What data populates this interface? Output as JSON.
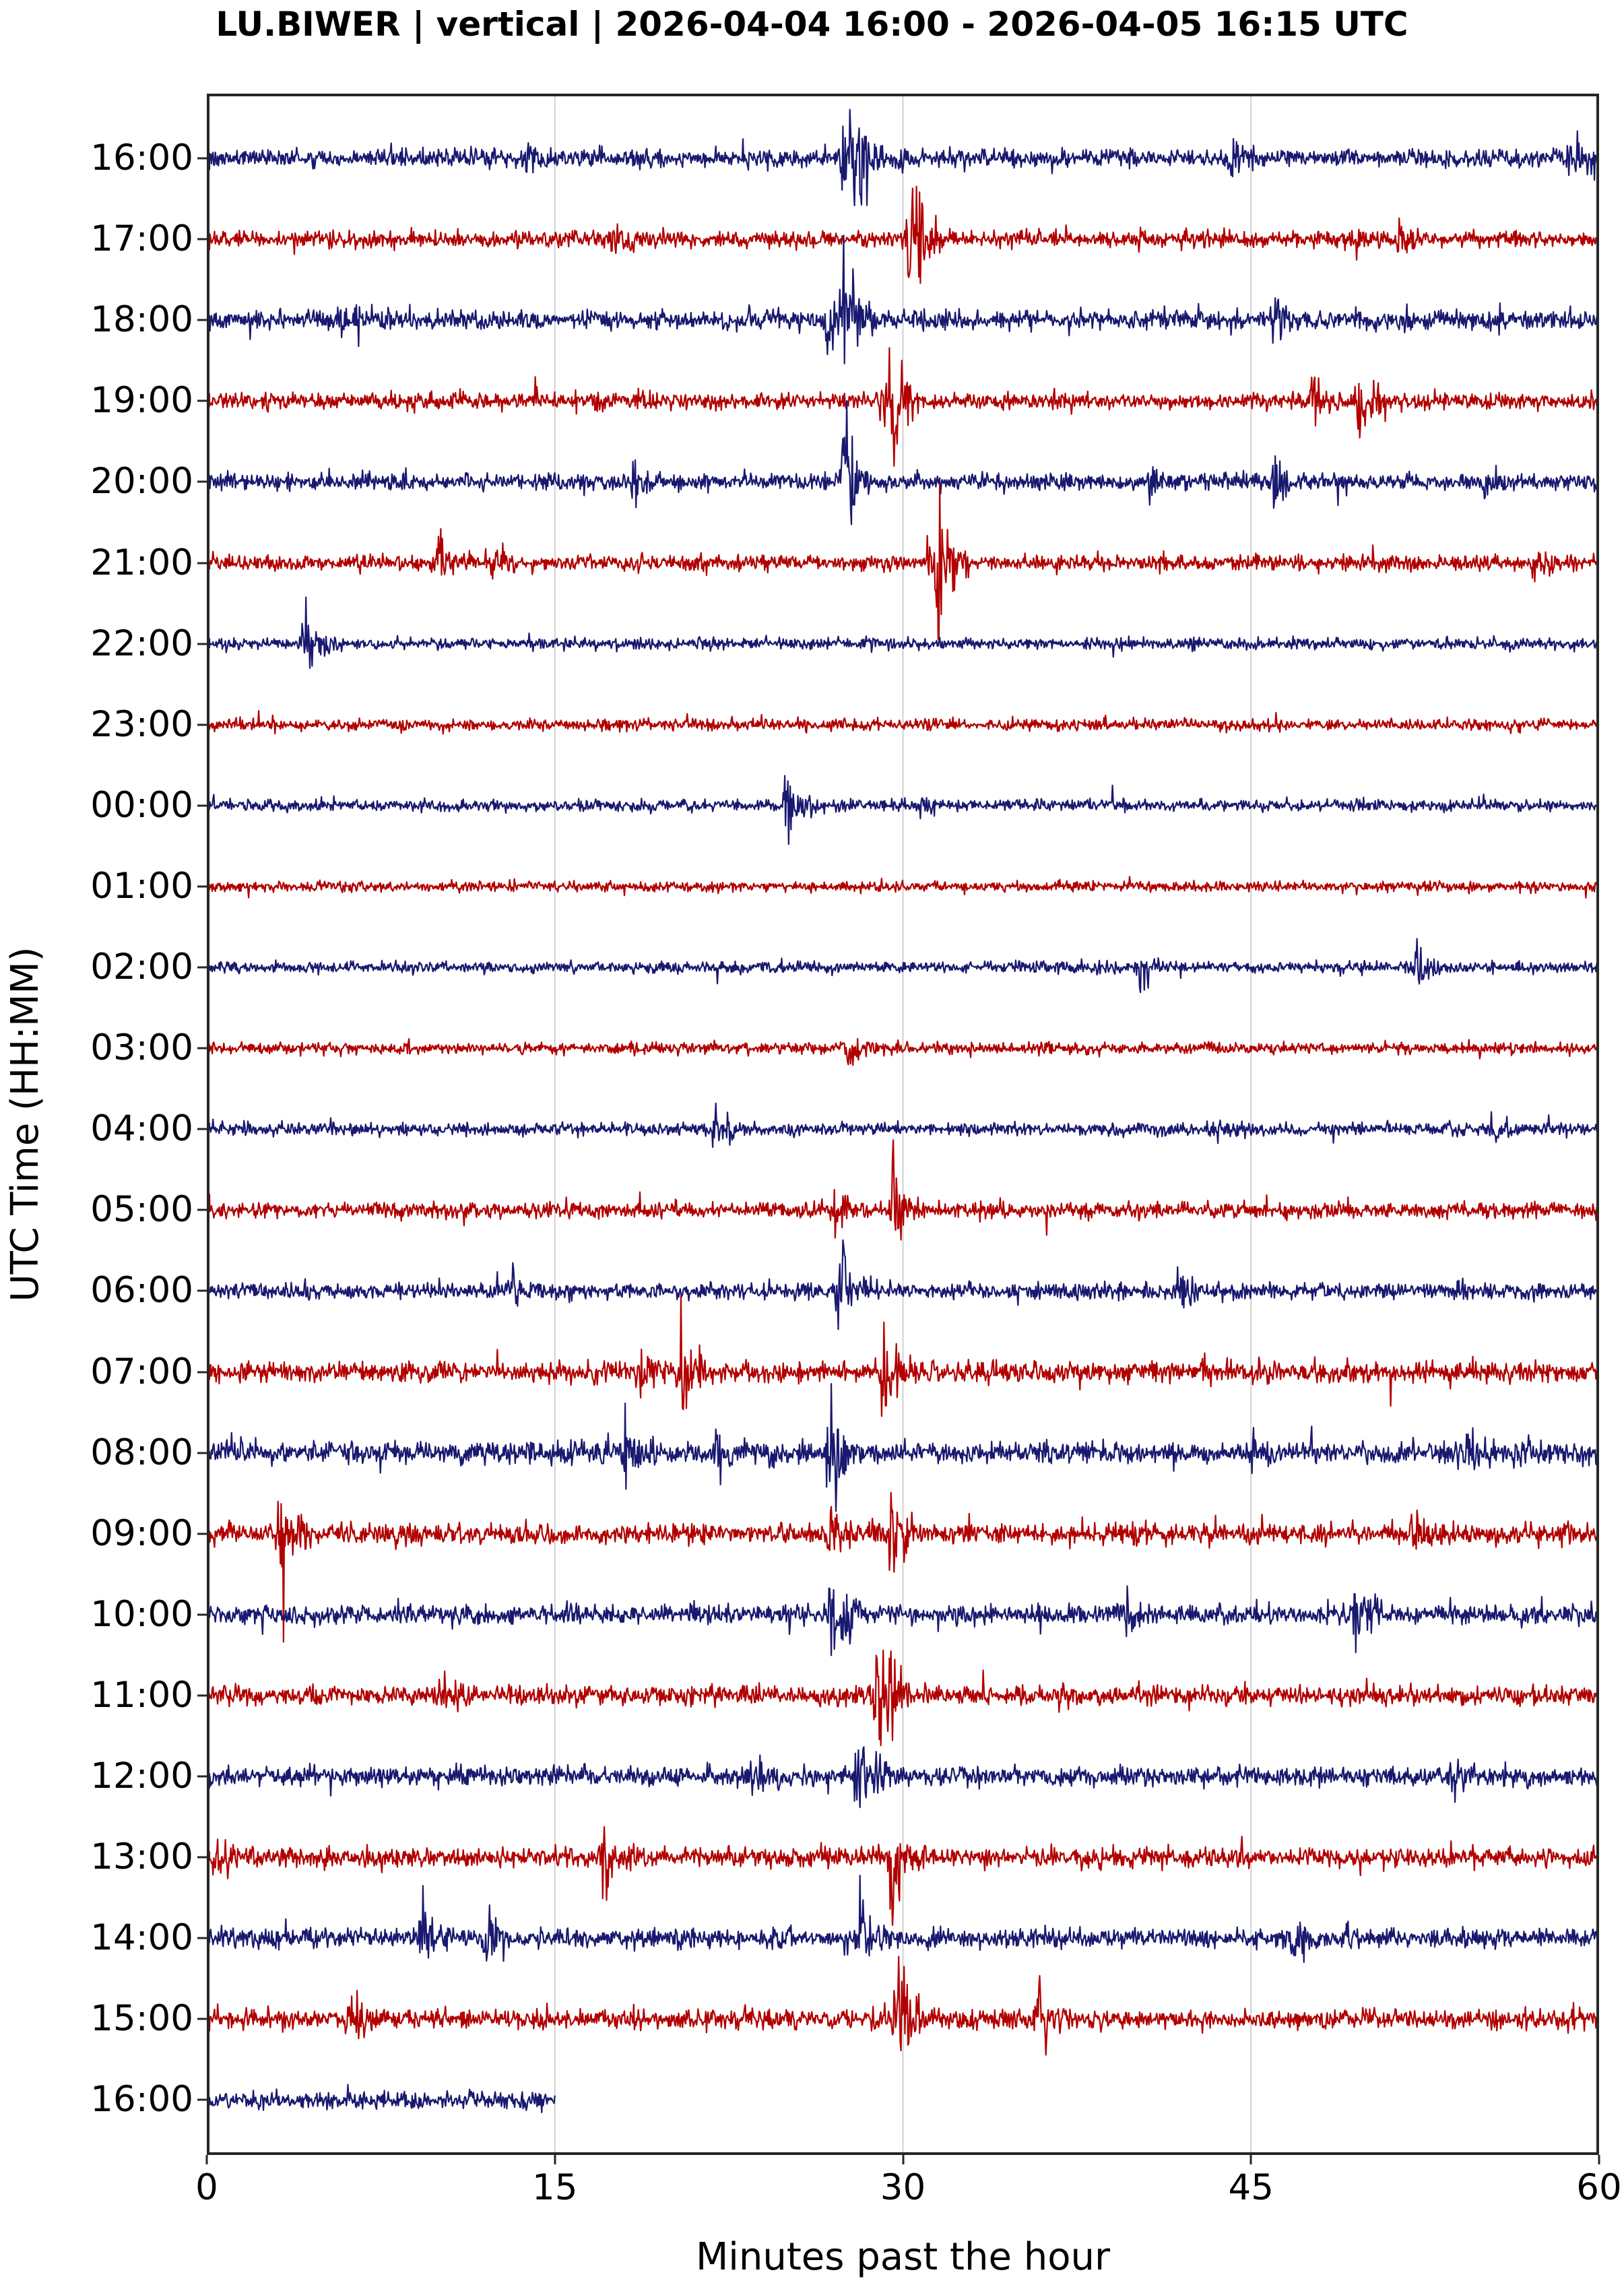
{
  "chart_data": {
    "type": "line",
    "title": "LU.BIWER | vertical | 2026-04-04 16:00 - 2026-04-05 16:15 UTC",
    "xlabel": "Minutes past the hour",
    "ylabel": "UTC Time (HH:MM)",
    "xlim": [
      0,
      60
    ],
    "x_ticks": [
      0,
      15,
      30,
      45,
      60
    ],
    "x_tick_labels": [
      "0",
      "15",
      "30",
      "45",
      "60"
    ],
    "grid": {
      "x": true,
      "y": false,
      "style": "vertical lines at 15-minute ticks"
    },
    "legend": null,
    "colors": [
      "#191970",
      "#b20000"
    ],
    "rows": [
      {
        "label": "16:00",
        "color": "#191970",
        "noise": 14,
        "events": [
          [
            27.5,
            95
          ],
          [
            28.1,
            60
          ],
          [
            13.8,
            25
          ],
          [
            44.2,
            40
          ],
          [
            58.8,
            40
          ]
        ]
      },
      {
        "label": "17:00",
        "color": "#b20000",
        "noise": 13,
        "events": [
          [
            30.2,
            85
          ],
          [
            30.6,
            55
          ],
          [
            17.6,
            25
          ],
          [
            51.5,
            22
          ]
        ]
      },
      {
        "label": "18:00",
        "color": "#191970",
        "noise": 15,
        "events": [
          [
            26.9,
            95
          ],
          [
            27.6,
            80
          ],
          [
            46.0,
            30
          ],
          [
            6.0,
            22
          ]
        ]
      },
      {
        "label": "19:00",
        "color": "#b20000",
        "noise": 13,
        "events": [
          [
            29.6,
            75
          ],
          [
            29.2,
            50
          ],
          [
            49.7,
            65
          ],
          [
            47.7,
            25
          ]
        ]
      },
      {
        "label": "20:00",
        "color": "#191970",
        "noise": 13,
        "events": [
          [
            27.5,
            100
          ],
          [
            46.0,
            45
          ],
          [
            18.5,
            35
          ],
          [
            40.5,
            22
          ],
          [
            55.2,
            30
          ]
        ]
      },
      {
        "label": "21:00",
        "color": "#b20000",
        "noise": 12,
        "events": [
          [
            31.6,
            110
          ],
          [
            31.3,
            60
          ],
          [
            10.0,
            35
          ],
          [
            12.3,
            30
          ],
          [
            57.3,
            22
          ]
        ]
      },
      {
        "label": "22:00",
        "color": "#191970",
        "noise": 9,
        "events": [
          [
            4.3,
            65
          ]
        ]
      },
      {
        "label": "23:00",
        "color": "#b20000",
        "noise": 9,
        "events": []
      },
      {
        "label": "00:00",
        "color": "#191970",
        "noise": 9,
        "events": [
          [
            25.0,
            60
          ],
          [
            30.8,
            15
          ]
        ]
      },
      {
        "label": "01:00",
        "color": "#b20000",
        "noise": 8,
        "events": []
      },
      {
        "label": "02:00",
        "color": "#191970",
        "noise": 9,
        "events": [
          [
            40.3,
            30
          ],
          [
            52.2,
            30
          ]
        ]
      },
      {
        "label": "03:00",
        "color": "#b20000",
        "noise": 9,
        "events": [
          [
            27.6,
            22
          ]
        ]
      },
      {
        "label": "04:00",
        "color": "#191970",
        "noise": 10,
        "events": [
          [
            21.9,
            35
          ],
          [
            43.5,
            15
          ],
          [
            55.5,
            15
          ]
        ]
      },
      {
        "label": "05:00",
        "color": "#b20000",
        "noise": 12,
        "events": [
          [
            29.6,
            80
          ],
          [
            27.1,
            55
          ]
        ]
      },
      {
        "label": "06:00",
        "color": "#191970",
        "noise": 13,
        "events": [
          [
            27.3,
            100
          ],
          [
            41.9,
            40
          ],
          [
            13.1,
            25
          ]
        ]
      },
      {
        "label": "07:00",
        "color": "#b20000",
        "noise": 16,
        "events": [
          [
            20.5,
            75
          ],
          [
            29.2,
            75
          ],
          [
            18.8,
            40
          ]
        ]
      },
      {
        "label": "08:00",
        "color": "#191970",
        "noise": 17,
        "events": [
          [
            26.9,
            100
          ],
          [
            18.0,
            50
          ],
          [
            22.0,
            40
          ],
          [
            45.0,
            25
          ],
          [
            54.3,
            35
          ]
        ]
      },
      {
        "label": "09:00",
        "color": "#b20000",
        "noise": 16,
        "events": [
          [
            29.5,
            95
          ],
          [
            3.2,
            60
          ],
          [
            26.9,
            40
          ],
          [
            52.0,
            30
          ]
        ]
      },
      {
        "label": "10:00",
        "color": "#191970",
        "noise": 15,
        "events": [
          [
            27.0,
            105
          ],
          [
            49.6,
            70
          ],
          [
            39.5,
            25
          ]
        ]
      },
      {
        "label": "11:00",
        "color": "#b20000",
        "noise": 15,
        "events": [
          [
            28.9,
            95
          ],
          [
            29.3,
            60
          ],
          [
            9.7,
            22
          ]
        ]
      },
      {
        "label": "12:00",
        "color": "#191970",
        "noise": 15,
        "events": [
          [
            28.1,
            100
          ],
          [
            23.9,
            22
          ],
          [
            53.7,
            25
          ]
        ]
      },
      {
        "label": "13:00",
        "color": "#b20000",
        "noise": 15,
        "events": [
          [
            29.6,
            100
          ],
          [
            17.1,
            55
          ],
          [
            0.5,
            30
          ]
        ]
      },
      {
        "label": "14:00",
        "color": "#191970",
        "noise": 15,
        "events": [
          [
            28.2,
            105
          ],
          [
            9.3,
            45
          ],
          [
            12.1,
            40
          ],
          [
            46.9,
            40
          ]
        ]
      },
      {
        "label": "15:00",
        "color": "#b20000",
        "noise": 15,
        "events": [
          [
            29.8,
            115
          ],
          [
            35.9,
            60
          ],
          [
            6.3,
            35
          ]
        ]
      },
      {
        "label": "16:00",
        "color": "#191970",
        "noise": 15,
        "events": [],
        "end_minute": 15
      }
    ]
  }
}
